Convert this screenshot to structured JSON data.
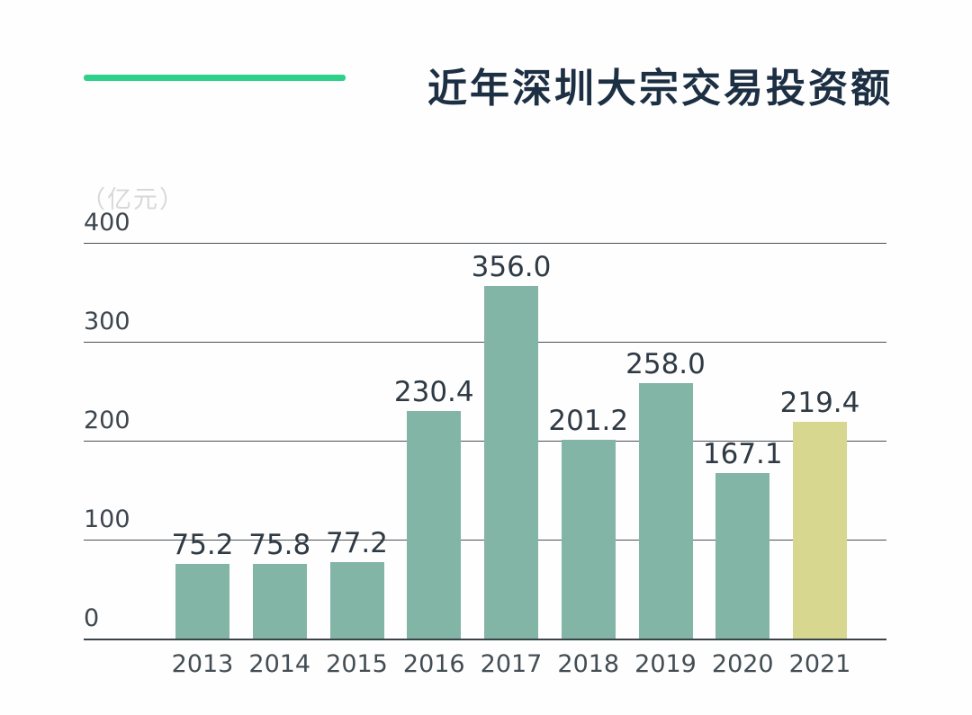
{
  "header": {
    "title": "近年深圳大宗交易投资额"
  },
  "colors": {
    "background": "#fefefe",
    "accent_green": "#2ed189",
    "title_text": "#1d2f43",
    "bar_teal": "#82b5a6",
    "bar_highlight": "#d7d78f",
    "value_label": "#2f3a44",
    "axis_tick_label": "#3d464e",
    "x_tick_label": "#434d54",
    "unit_label": "#d8d8d8",
    "gridline": "#4a5056",
    "baseline": "#3d4449"
  },
  "chart_data": {
    "type": "bar",
    "title": "近年深圳大宗交易投资额",
    "ylabel": "（亿元）",
    "xlabel": "",
    "categories": [
      "2013",
      "2014",
      "2015",
      "2016",
      "2017",
      "2018",
      "2019",
      "2020",
      "2021"
    ],
    "values": [
      75.2,
      75.8,
      77.2,
      230.4,
      356.0,
      201.2,
      258.0,
      167.1,
      219.4
    ],
    "value_labels": [
      "75.2",
      "75.8",
      "77.2",
      "230.4",
      "356.0",
      "201.2",
      "258.0",
      "167.1",
      "219.4"
    ],
    "ylim": [
      0,
      400
    ],
    "yticks": [
      0,
      100,
      200,
      300,
      400
    ],
    "grid": true,
    "legend": "none",
    "highlight_index": 8,
    "highlight_year": "2021"
  }
}
